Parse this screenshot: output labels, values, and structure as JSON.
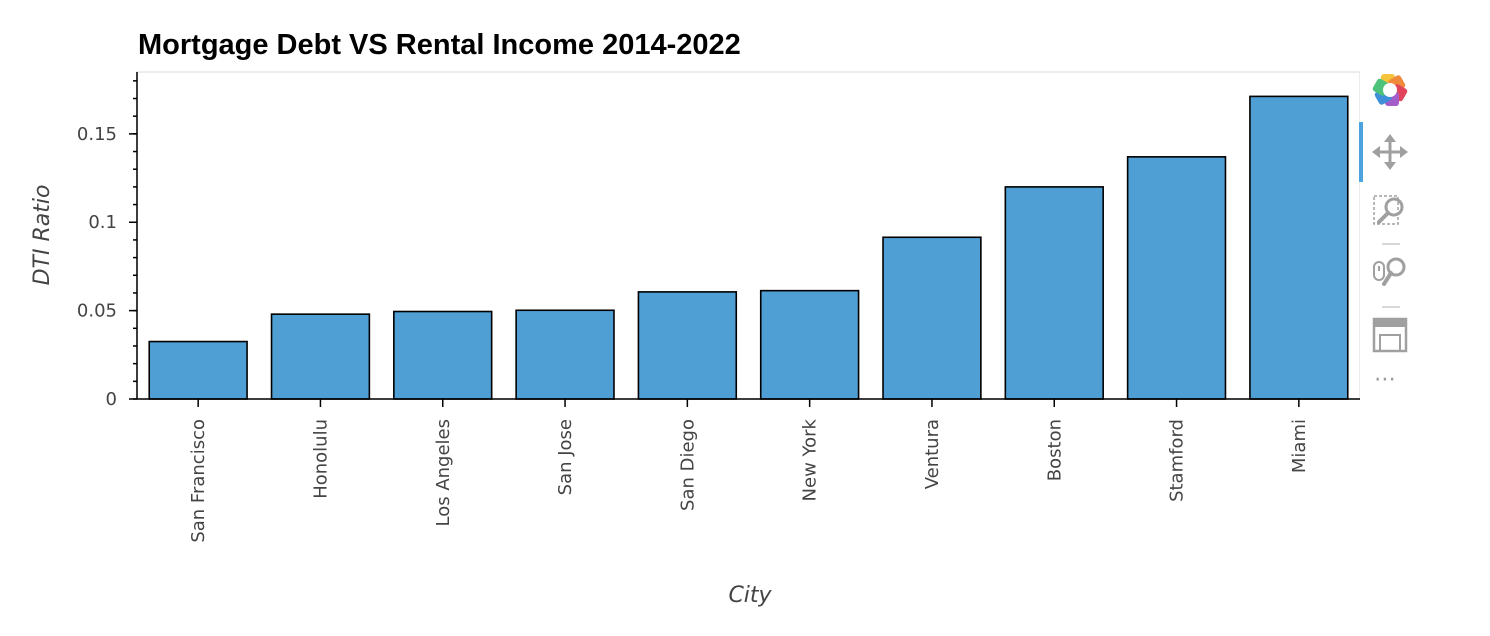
{
  "chart_data": {
    "type": "bar",
    "title": "Mortgage Debt VS Rental Income 2014-2022",
    "xlabel": "City",
    "ylabel": "DTI Ratio",
    "categories": [
      "San Francisco",
      "Honolulu",
      "Los Angeles",
      "San Jose",
      "San Diego",
      "New York",
      "Ventura",
      "Boston",
      "Stamford",
      "Miami"
    ],
    "values": [
      0.0325,
      0.048,
      0.0495,
      0.0502,
      0.0606,
      0.0613,
      0.0915,
      0.12,
      0.137,
      0.1712
    ],
    "ylim": [
      0,
      0.185
    ],
    "yticks": [
      {
        "value": 0,
        "label": "0"
      },
      {
        "value": 0.05,
        "label": "0.05"
      },
      {
        "value": 0.1,
        "label": "0.1"
      },
      {
        "value": 0.15,
        "label": "0.15"
      }
    ],
    "bar_color": "#4f9fd4",
    "grid": false,
    "legend": "none"
  },
  "toolbar": {
    "tools": [
      {
        "name": "bokeh-logo-icon"
      },
      {
        "name": "pan-tool-icon",
        "active": true
      },
      {
        "name": "box-zoom-tool-icon"
      },
      {
        "name": "wheel-zoom-tool-icon"
      },
      {
        "name": "save-tool-icon"
      }
    ],
    "more_label": "⋯",
    "accent_color": "#4ca3dd"
  }
}
